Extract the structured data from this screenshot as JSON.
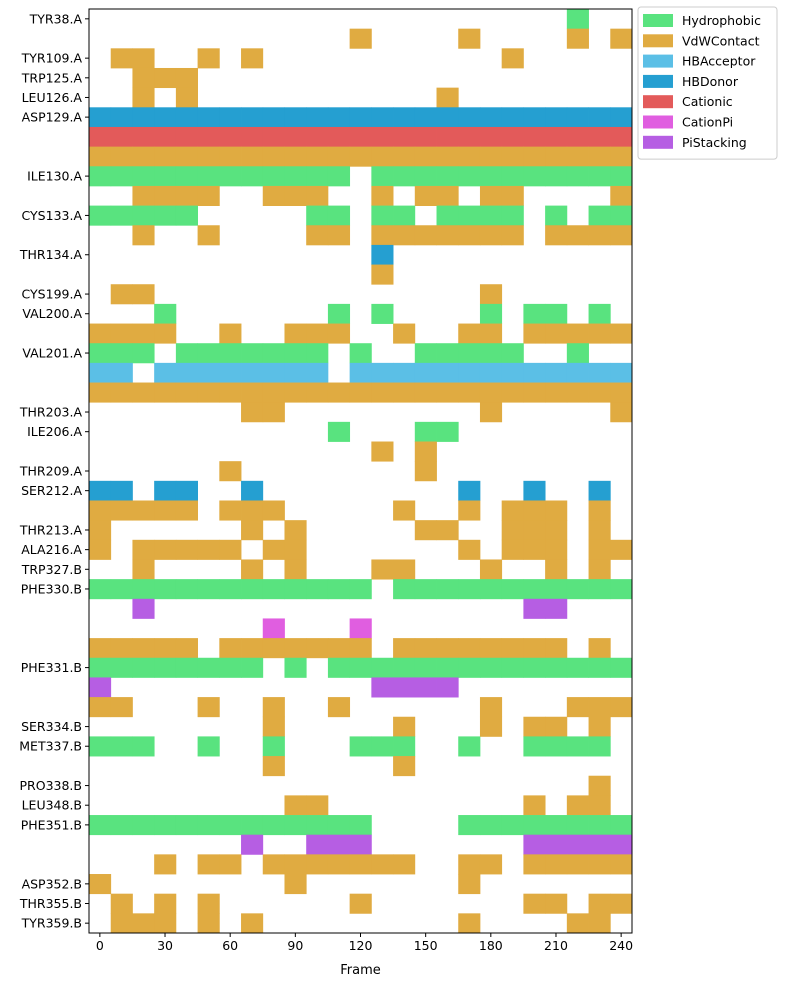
{
  "chart_data": {
    "type": "heatmap",
    "title": "",
    "xlabel": "Frame",
    "ylabel": "",
    "xlim": [
      -5,
      245
    ],
    "x_ticks": [
      0,
      30,
      60,
      90,
      120,
      150,
      180,
      210,
      240
    ],
    "x_tick_labels": [
      "0",
      "30",
      "60",
      "90",
      "120",
      "150",
      "180",
      "210",
      "240"
    ],
    "bin_width": 10,
    "x_bins": [
      0,
      10,
      20,
      30,
      40,
      50,
      60,
      70,
      80,
      90,
      100,
      110,
      120,
      130,
      140,
      150,
      160,
      170,
      180,
      190,
      200,
      210,
      220,
      230,
      240
    ],
    "colors": {
      "Hydrophobic": "#59e37f",
      "VdWContact": "#e0ab41",
      "HBAcceptor": "#5bbfe6",
      "HBDonor": "#259fd1",
      "Cationic": "#e35a5a",
      "CationPi": "#e05ee0",
      "PiStacking": "#b65ee3"
    },
    "legend": {
      "position": "outside upper-right",
      "entries": [
        "Hydrophobic",
        "VdWContact",
        "HBAcceptor",
        "HBDonor",
        "Cationic",
        "CationPi",
        "PiStacking"
      ]
    },
    "rows": [
      {
        "label": "TYR38.A",
        "type": "Hydrophobic",
        "active_bins": [
          22
        ]
      },
      {
        "label": "",
        "type": "VdWContact",
        "active_bins": [
          12,
          17,
          22,
          24
        ]
      },
      {
        "label": "TYR109.A",
        "type": "VdWContact",
        "active_bins": [
          1,
          2,
          5,
          7,
          19
        ]
      },
      {
        "label": "TRP125.A",
        "type": "VdWContact",
        "active_bins": [
          2,
          3,
          4
        ]
      },
      {
        "label": "LEU126.A",
        "type": "VdWContact",
        "active_bins": [
          2,
          4,
          16
        ]
      },
      {
        "label": "ASP129.A",
        "type": "HBDonor",
        "active_bins": [
          0,
          1,
          2,
          3,
          4,
          5,
          6,
          7,
          8,
          9,
          10,
          11,
          12,
          13,
          14,
          15,
          16,
          17,
          18,
          19,
          20,
          21,
          22,
          23,
          24
        ]
      },
      {
        "label": "",
        "type": "Cationic",
        "active_bins": [
          0,
          1,
          2,
          3,
          4,
          5,
          6,
          7,
          8,
          9,
          10,
          11,
          12,
          13,
          14,
          15,
          16,
          17,
          18,
          19,
          20,
          21,
          22,
          23,
          24
        ]
      },
      {
        "label": "",
        "type": "VdWContact",
        "active_bins": [
          0,
          1,
          2,
          3,
          4,
          5,
          6,
          7,
          8,
          9,
          10,
          11,
          12,
          13,
          14,
          15,
          16,
          17,
          18,
          19,
          20,
          21,
          22,
          23,
          24
        ]
      },
      {
        "label": "ILE130.A",
        "type": "Hydrophobic",
        "active_bins": [
          0,
          1,
          2,
          3,
          4,
          5,
          6,
          7,
          8,
          9,
          10,
          11,
          13,
          14,
          15,
          16,
          17,
          18,
          19,
          20,
          21,
          22,
          23,
          24
        ]
      },
      {
        "label": "",
        "type": "VdWContact",
        "active_bins": [
          2,
          3,
          4,
          5,
          8,
          9,
          10,
          13,
          15,
          16,
          18,
          19,
          24
        ]
      },
      {
        "label": "CYS133.A",
        "type": "Hydrophobic",
        "active_bins": [
          0,
          1,
          2,
          3,
          4,
          10,
          11,
          13,
          14,
          16,
          17,
          18,
          19,
          21,
          23,
          24
        ]
      },
      {
        "label": "",
        "type": "VdWContact",
        "active_bins": [
          2,
          5,
          10,
          11,
          13,
          14,
          15,
          16,
          17,
          18,
          19,
          21,
          22,
          23,
          24
        ]
      },
      {
        "label": "THR134.A",
        "type": "HBDonor",
        "active_bins": [
          13
        ]
      },
      {
        "label": "",
        "type": "VdWContact",
        "active_bins": [
          13
        ]
      },
      {
        "label": "CYS199.A",
        "type": "VdWContact",
        "active_bins": [
          1,
          2,
          18
        ]
      },
      {
        "label": "VAL200.A",
        "type": "Hydrophobic",
        "active_bins": [
          3,
          11,
          13,
          18,
          20,
          21,
          23
        ]
      },
      {
        "label": "",
        "type": "VdWContact",
        "active_bins": [
          0,
          1,
          2,
          3,
          6,
          9,
          10,
          11,
          14,
          17,
          18,
          20,
          21,
          22,
          23,
          24
        ]
      },
      {
        "label": "VAL201.A",
        "type": "Hydrophobic",
        "active_bins": [
          0,
          1,
          2,
          4,
          5,
          6,
          7,
          8,
          9,
          10,
          12,
          15,
          16,
          17,
          18,
          19,
          22
        ]
      },
      {
        "label": "",
        "type": "HBAcceptor",
        "active_bins": [
          0,
          1,
          3,
          4,
          5,
          6,
          7,
          8,
          9,
          10,
          12,
          13,
          14,
          15,
          16,
          17,
          18,
          19,
          20,
          21,
          22,
          23,
          24
        ]
      },
      {
        "label": "",
        "type": "VdWContact",
        "active_bins": [
          0,
          1,
          2,
          3,
          4,
          5,
          6,
          7,
          8,
          9,
          10,
          11,
          12,
          13,
          14,
          15,
          16,
          17,
          18,
          19,
          20,
          21,
          22,
          23,
          24
        ]
      },
      {
        "label": "THR203.A",
        "type": "VdWContact",
        "active_bins": [
          7,
          8,
          18,
          24
        ]
      },
      {
        "label": "ILE206.A",
        "type": "Hydrophobic",
        "active_bins": [
          11,
          15,
          16
        ]
      },
      {
        "label": "",
        "type": "VdWContact",
        "active_bins": [
          13,
          15
        ]
      },
      {
        "label": "THR209.A",
        "type": "VdWContact",
        "active_bins": [
          6,
          15
        ]
      },
      {
        "label": "SER212.A",
        "type": "HBDonor",
        "active_bins": [
          0,
          1,
          3,
          4,
          7,
          17,
          20,
          23
        ]
      },
      {
        "label": "",
        "type": "VdWContact",
        "active_bins": [
          0,
          1,
          2,
          3,
          4,
          6,
          7,
          8,
          14,
          17,
          19,
          20,
          21,
          23
        ]
      },
      {
        "label": "THR213.A",
        "type": "VdWContact",
        "active_bins": [
          0,
          7,
          9,
          15,
          16,
          19,
          20,
          21,
          23
        ]
      },
      {
        "label": "ALA216.A",
        "type": "VdWContact",
        "active_bins": [
          0,
          2,
          3,
          4,
          5,
          6,
          8,
          9,
          17,
          19,
          20,
          21,
          23,
          24
        ]
      },
      {
        "label": "TRP327.B",
        "type": "VdWContact",
        "active_bins": [
          2,
          7,
          9,
          13,
          14,
          18,
          21,
          23
        ]
      },
      {
        "label": "PHE330.B",
        "type": "Hydrophobic",
        "active_bins": [
          0,
          1,
          2,
          3,
          4,
          5,
          6,
          7,
          8,
          9,
          10,
          11,
          12,
          14,
          15,
          16,
          17,
          18,
          19,
          20,
          21,
          22,
          23,
          24
        ]
      },
      {
        "label": "",
        "type": "PiStacking",
        "active_bins": [
          2,
          20,
          21
        ]
      },
      {
        "label": "",
        "type": "CationPi",
        "active_bins": [
          8,
          12
        ]
      },
      {
        "label": "",
        "type": "VdWContact",
        "active_bins": [
          0,
          1,
          2,
          3,
          4,
          6,
          7,
          8,
          9,
          10,
          11,
          12,
          14,
          15,
          16,
          17,
          18,
          19,
          20,
          21,
          23
        ]
      },
      {
        "label": "PHE331.B",
        "type": "Hydrophobic",
        "active_bins": [
          0,
          1,
          2,
          3,
          4,
          5,
          6,
          7,
          9,
          11,
          12,
          13,
          14,
          15,
          16,
          17,
          18,
          19,
          20,
          21,
          22,
          23,
          24
        ]
      },
      {
        "label": "",
        "type": "PiStacking",
        "active_bins": [
          0,
          13,
          14,
          15,
          16
        ]
      },
      {
        "label": "",
        "type": "VdWContact",
        "active_bins": [
          0,
          1,
          5,
          8,
          11,
          18,
          22,
          23,
          24
        ]
      },
      {
        "label": "SER334.B",
        "type": "VdWContact",
        "active_bins": [
          8,
          14,
          18,
          20,
          21,
          23
        ]
      },
      {
        "label": "MET337.B",
        "type": "Hydrophobic",
        "active_bins": [
          0,
          1,
          2,
          5,
          8,
          12,
          13,
          14,
          17,
          20,
          21,
          22,
          23
        ]
      },
      {
        "label": "",
        "type": "VdWContact",
        "active_bins": [
          8,
          14
        ]
      },
      {
        "label": "PRO338.B",
        "type": "VdWContact",
        "active_bins": [
          23
        ]
      },
      {
        "label": "LEU348.B",
        "type": "VdWContact",
        "active_bins": [
          9,
          10,
          20,
          22,
          23
        ]
      },
      {
        "label": "PHE351.B",
        "type": "Hydrophobic",
        "active_bins": [
          0,
          1,
          2,
          3,
          4,
          5,
          6,
          7,
          8,
          9,
          10,
          11,
          12,
          17,
          18,
          19,
          20,
          21,
          22,
          23,
          24
        ]
      },
      {
        "label": "",
        "type": "PiStacking",
        "active_bins": [
          7,
          10,
          11,
          12,
          20,
          21,
          22,
          23,
          24
        ]
      },
      {
        "label": "",
        "type": "VdWContact",
        "active_bins": [
          3,
          5,
          6,
          8,
          9,
          10,
          11,
          12,
          13,
          14,
          17,
          18,
          20,
          21,
          22,
          23,
          24
        ]
      },
      {
        "label": "ASP352.B",
        "type": "VdWContact",
        "active_bins": [
          0,
          9,
          17
        ]
      },
      {
        "label": "THR355.B",
        "type": "VdWContact",
        "active_bins": [
          1,
          3,
          5,
          12,
          20,
          21,
          23,
          24
        ]
      },
      {
        "label": "TYR359.B",
        "type": "VdWContact",
        "active_bins": [
          1,
          2,
          3,
          5,
          7,
          17,
          22,
          23
        ]
      }
    ]
  }
}
